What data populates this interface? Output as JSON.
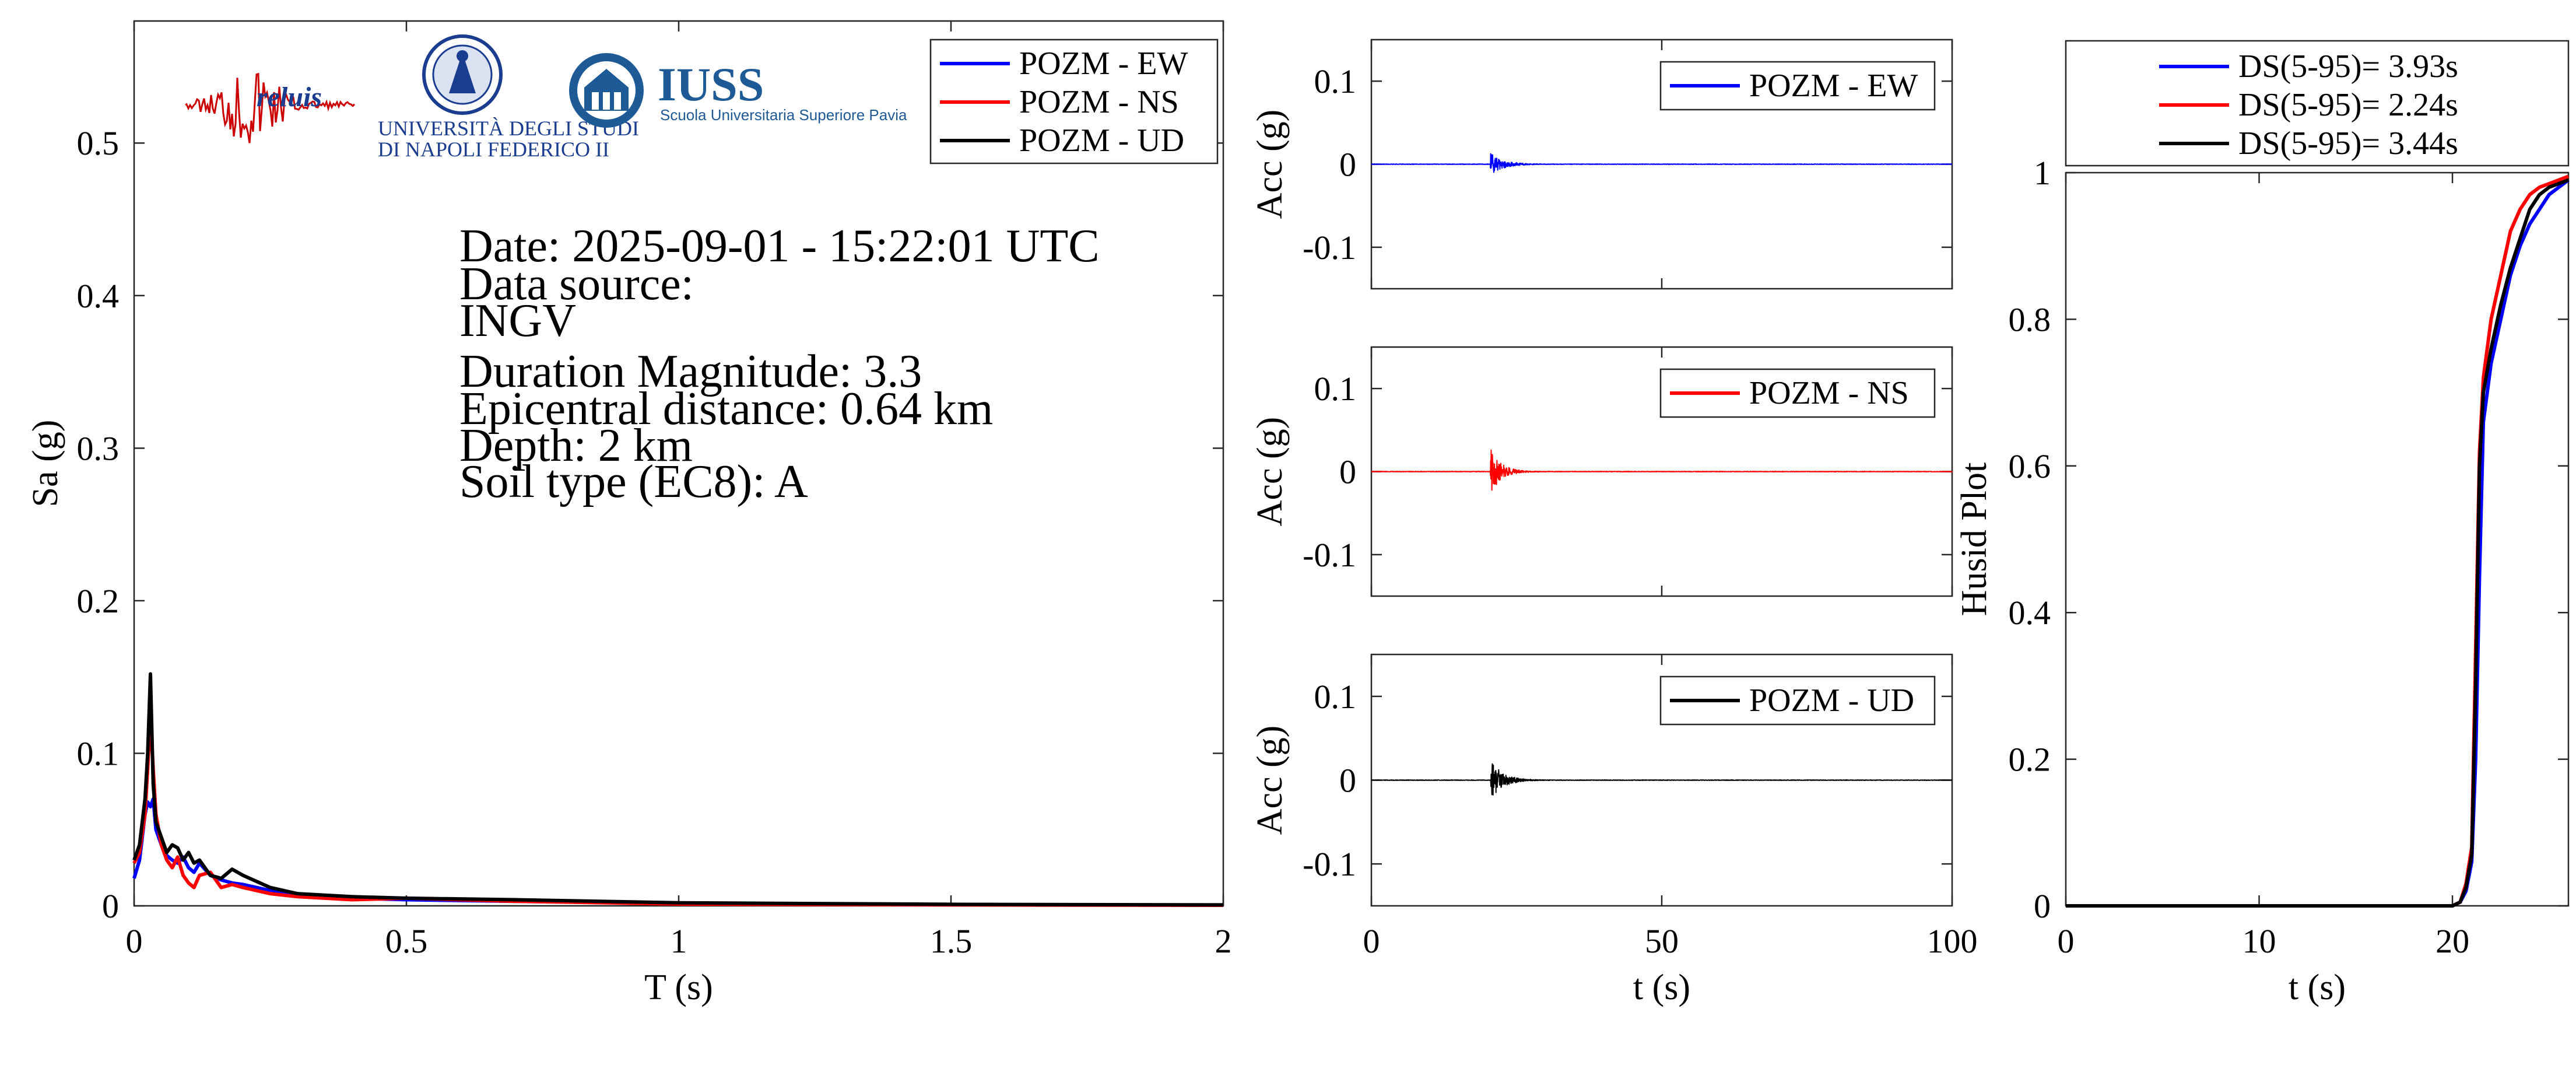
{
  "colors": {
    "ew": "#0000ff",
    "ns": "#ff0000",
    "ud": "#000000"
  },
  "logos": {
    "reluis": "reluis",
    "unina_line1": "UNIVERSITÀ DEGLI STUDI",
    "unina_line2": "DI NAPOLI FEDERICO II",
    "iuss_big": "IUSS",
    "iuss_small": "Scuola Universitaria Superiore Pavia"
  },
  "info": {
    "date": "Date: 2025-09-01 - 15:22:01 UTC",
    "source_label": "Data source:",
    "source": "INGV",
    "magnitude": "Duration Magnitude: 3.3",
    "distance": "Epicentral distance: 0.64 km",
    "depth": "Depth: 2 km",
    "soil": "Soil type (EC8): A"
  },
  "chart_data": [
    {
      "type": "line",
      "name": "response-spectrum",
      "xlabel": "T (s)",
      "ylabel": "Sa (g)",
      "xlim": [
        0,
        2
      ],
      "ylim": [
        0,
        0.58
      ],
      "xticks": [
        0,
        0.5,
        1,
        1.5,
        2
      ],
      "xtick_labels": [
        "0",
        "0.5",
        "1",
        "1.5",
        "2"
      ],
      "yticks": [
        0,
        0.1,
        0.2,
        0.3,
        0.4,
        0.5
      ],
      "ytick_labels": [
        "0",
        "0.1",
        "0.2",
        "0.3",
        "0.4",
        "0.5"
      ],
      "grid": false,
      "legend": "top-right",
      "series": [
        {
          "name": "POZM - EW",
          "color": "#0000ff",
          "x": [
            0,
            0.01,
            0.02,
            0.025,
            0.03,
            0.035,
            0.04,
            0.05,
            0.06,
            0.07,
            0.08,
            0.09,
            0.1,
            0.11,
            0.12,
            0.14,
            0.16,
            0.18,
            0.2,
            0.25,
            0.3,
            0.4,
            0.5,
            0.7,
            1.0,
            1.5,
            2.0
          ],
          "y": [
            0.018,
            0.03,
            0.06,
            0.068,
            0.065,
            0.07,
            0.05,
            0.04,
            0.033,
            0.03,
            0.028,
            0.032,
            0.025,
            0.022,
            0.028,
            0.02,
            0.017,
            0.015,
            0.014,
            0.01,
            0.007,
            0.005,
            0.004,
            0.003,
            0.0015,
            0.0008,
            0.0005
          ]
        },
        {
          "name": "POZM - NS",
          "color": "#ff0000",
          "x": [
            0,
            0.01,
            0.02,
            0.025,
            0.03,
            0.035,
            0.04,
            0.05,
            0.06,
            0.07,
            0.08,
            0.09,
            0.1,
            0.11,
            0.12,
            0.14,
            0.16,
            0.18,
            0.2,
            0.25,
            0.3,
            0.4,
            0.5,
            0.7,
            1.0,
            1.5,
            2.0
          ],
          "y": [
            0.028,
            0.035,
            0.06,
            0.09,
            0.125,
            0.09,
            0.06,
            0.04,
            0.03,
            0.025,
            0.032,
            0.02,
            0.015,
            0.012,
            0.02,
            0.022,
            0.012,
            0.014,
            0.012,
            0.008,
            0.006,
            0.004,
            0.005,
            0.003,
            0.0012,
            0.0006,
            0.0004
          ]
        },
        {
          "name": "POZM - UD",
          "color": "#000000",
          "x": [
            0,
            0.01,
            0.02,
            0.025,
            0.03,
            0.035,
            0.04,
            0.05,
            0.06,
            0.07,
            0.08,
            0.09,
            0.1,
            0.11,
            0.12,
            0.14,
            0.16,
            0.18,
            0.2,
            0.25,
            0.3,
            0.4,
            0.5,
            0.7,
            1.0,
            1.5,
            2.0
          ],
          "y": [
            0.03,
            0.04,
            0.07,
            0.1,
            0.152,
            0.08,
            0.055,
            0.045,
            0.035,
            0.04,
            0.038,
            0.03,
            0.035,
            0.028,
            0.03,
            0.02,
            0.018,
            0.024,
            0.02,
            0.012,
            0.008,
            0.006,
            0.005,
            0.004,
            0.002,
            0.001,
            0.0006
          ]
        }
      ]
    },
    {
      "type": "line",
      "name": "accelerogram-ew",
      "ylabel": "Acc (g)",
      "xlim": [
        0,
        100
      ],
      "ylim": [
        -0.15,
        0.15
      ],
      "xticks": [
        0,
        50,
        100
      ],
      "yticks": [
        -0.1,
        0,
        0.1
      ],
      "ytick_labels": [
        "-0.1",
        "0",
        "0.1"
      ],
      "legend": "top-right",
      "series": [
        {
          "name": "POZM - EW",
          "color": "#0000ff",
          "peak": 0.013,
          "onset": 20.5,
          "decay": 2.2
        }
      ]
    },
    {
      "type": "line",
      "name": "accelerogram-ns",
      "ylabel": "Acc (g)",
      "xlim": [
        0,
        100
      ],
      "ylim": [
        -0.15,
        0.15
      ],
      "xticks": [
        0,
        50,
        100
      ],
      "yticks": [
        -0.1,
        0,
        0.1
      ],
      "ytick_labels": [
        "-0.1",
        "0",
        "0.1"
      ],
      "legend": "top-right",
      "series": [
        {
          "name": "POZM - NS",
          "color": "#ff0000",
          "peak": 0.028,
          "onset": 20.5,
          "decay": 1.8
        }
      ]
    },
    {
      "type": "line",
      "name": "accelerogram-ud",
      "ylabel": "Acc (g)",
      "xlabel": "t (s)",
      "xlim": [
        0,
        100
      ],
      "ylim": [
        -0.15,
        0.15
      ],
      "xticks": [
        0,
        50,
        100
      ],
      "xtick_labels": [
        "0",
        "50",
        "100"
      ],
      "yticks": [
        -0.1,
        0,
        0.1
      ],
      "ytick_labels": [
        "-0.1",
        "0",
        "0.1"
      ],
      "legend": "top-right",
      "series": [
        {
          "name": "POZM - UD",
          "color": "#000000",
          "peak": 0.025,
          "onset": 20.5,
          "decay": 2.0
        }
      ]
    },
    {
      "type": "line",
      "name": "husid-plot",
      "xlabel": "t (s)",
      "ylabel": "Husid Plot",
      "xlim": [
        0,
        26
      ],
      "ylim": [
        0,
        1
      ],
      "xticks": [
        0,
        10,
        20
      ],
      "xtick_labels": [
        "0",
        "10",
        "20"
      ],
      "yticks": [
        0,
        0.2,
        0.4,
        0.6,
        0.8,
        1
      ],
      "ytick_labels": [
        "0",
        "0.2",
        "0.4",
        "0.6",
        "0.8",
        "1"
      ],
      "legend": "top-outside",
      "series": [
        {
          "name": "DS(5-95)= 3.93s",
          "color": "#0000ff",
          "x": [
            0,
            20.0,
            20.4,
            20.7,
            21.0,
            21.2,
            21.4,
            21.6,
            22.0,
            22.5,
            23.0,
            23.5,
            24.0,
            24.5,
            25.0,
            26.0
          ],
          "y": [
            0,
            0,
            0.005,
            0.02,
            0.06,
            0.2,
            0.45,
            0.66,
            0.74,
            0.8,
            0.86,
            0.9,
            0.93,
            0.95,
            0.97,
            0.99
          ]
        },
        {
          "name": "DS(5-95)= 2.24s",
          "color": "#ff0000",
          "x": [
            0,
            20.0,
            20.4,
            20.7,
            21.0,
            21.2,
            21.4,
            21.6,
            22.0,
            22.5,
            23.0,
            23.5,
            24.0,
            24.5,
            25.0,
            26.0
          ],
          "y": [
            0,
            0,
            0.005,
            0.03,
            0.08,
            0.35,
            0.62,
            0.72,
            0.8,
            0.86,
            0.92,
            0.95,
            0.97,
            0.98,
            0.985,
            0.995
          ]
        },
        {
          "name": "DS(5-95)= 3.44s",
          "color": "#000000",
          "x": [
            0,
            20.0,
            20.4,
            20.7,
            21.0,
            21.2,
            21.4,
            21.6,
            22.0,
            22.5,
            23.0,
            23.5,
            24.0,
            24.5,
            25.0,
            26.0
          ],
          "y": [
            0,
            0,
            0.005,
            0.025,
            0.07,
            0.3,
            0.6,
            0.7,
            0.76,
            0.82,
            0.87,
            0.91,
            0.95,
            0.97,
            0.98,
            0.99
          ]
        }
      ]
    }
  ]
}
